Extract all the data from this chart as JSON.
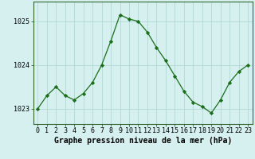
{
  "x": [
    0,
    1,
    2,
    3,
    4,
    5,
    6,
    7,
    8,
    9,
    10,
    11,
    12,
    13,
    14,
    15,
    16,
    17,
    18,
    19,
    20,
    21,
    22,
    23
  ],
  "y": [
    1023.0,
    1023.3,
    1023.5,
    1023.3,
    1023.2,
    1023.35,
    1023.6,
    1024.0,
    1024.55,
    1025.15,
    1025.05,
    1025.0,
    1024.75,
    1024.4,
    1024.1,
    1023.75,
    1023.4,
    1023.15,
    1023.05,
    1022.9,
    1023.2,
    1023.6,
    1023.85,
    1024.0
  ],
  "line_color": "#1a6e1a",
  "marker": "D",
  "marker_size": 2.2,
  "bg_color": "#d6f0f0",
  "grid_color": "#b0d8d8",
  "yticks": [
    1023,
    1024,
    1025
  ],
  "xticks": [
    0,
    1,
    2,
    3,
    4,
    5,
    6,
    7,
    8,
    9,
    10,
    11,
    12,
    13,
    14,
    15,
    16,
    17,
    18,
    19,
    20,
    21,
    22,
    23
  ],
  "xlabel": "Graphe pression niveau de la mer (hPa)",
  "ylim": [
    1022.65,
    1025.45
  ],
  "xlim": [
    -0.5,
    23.5
  ],
  "xlabel_fontsize": 7,
  "tick_fontsize": 6,
  "axis_bg": "#d6f0f0",
  "spine_color": "#336633",
  "linewidth": 0.9
}
